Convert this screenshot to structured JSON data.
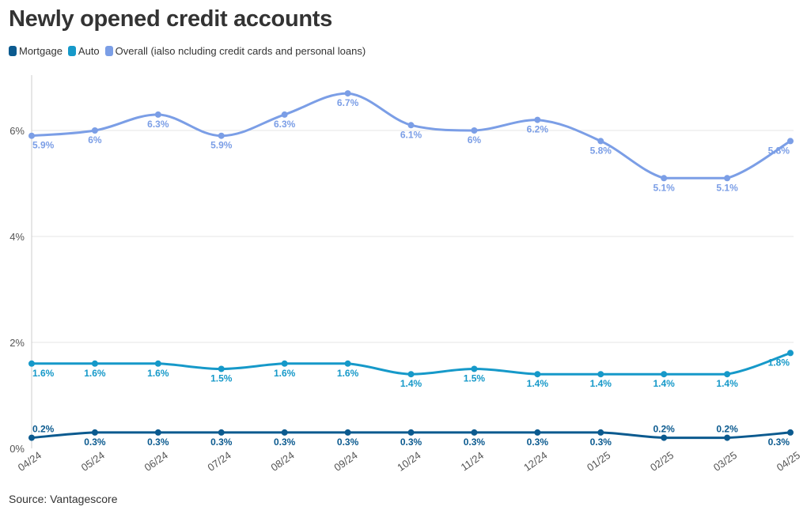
{
  "title": "Newly opened credit accounts",
  "source": "Source: Vantagescore",
  "legend": [
    {
      "name": "Mortgage",
      "color": "#0b5a8f"
    },
    {
      "name": "Auto",
      "color": "#1699c9"
    },
    {
      "name": "Overall (ialso ncluding credit cards and personal loans)",
      "color": "#7b9ee6"
    }
  ],
  "chart_data": {
    "type": "line",
    "title": "Newly opened credit accounts",
    "xlabel": "",
    "ylabel": "",
    "categories": [
      "04/24",
      "05/24",
      "06/24",
      "07/24",
      "08/24",
      "09/24",
      "10/24",
      "11/24",
      "12/24",
      "01/25",
      "02/25",
      "03/25",
      "04/25"
    ],
    "y_ticks": [
      "0%",
      "2%",
      "4%",
      "6%"
    ],
    "ylim": [
      0,
      7
    ],
    "grid": true,
    "legend_position": "top-left",
    "series": [
      {
        "name": "Mortgage",
        "color": "#0b5a8f",
        "values": [
          0.2,
          0.3,
          0.3,
          0.3,
          0.3,
          0.3,
          0.3,
          0.3,
          0.3,
          0.3,
          0.2,
          0.2,
          0.3
        ],
        "labels": [
          "0.2%",
          "0.3%",
          "0.3%",
          "0.3%",
          "0.3%",
          "0.3%",
          "0.3%",
          "0.3%",
          "0.3%",
          "0.3%",
          "0.2%",
          "0.2%",
          "0.3%"
        ]
      },
      {
        "name": "Auto",
        "color": "#1699c9",
        "values": [
          1.6,
          1.6,
          1.6,
          1.5,
          1.6,
          1.6,
          1.4,
          1.5,
          1.4,
          1.4,
          1.4,
          1.4,
          1.8
        ],
        "labels": [
          "1.6%",
          "1.6%",
          "1.6%",
          "1.5%",
          "1.6%",
          "1.6%",
          "1.4%",
          "1.5%",
          "1.4%",
          "1.4%",
          "1.4%",
          "1.4%",
          "1.8%"
        ]
      },
      {
        "name": "Overall (ialso ncluding credit cards and personal loans)",
        "color": "#7b9ee6",
        "values": [
          5.9,
          6.0,
          6.3,
          5.9,
          6.3,
          6.7,
          6.1,
          6.0,
          6.2,
          5.8,
          5.1,
          5.1,
          5.8
        ],
        "labels": [
          "5.9%",
          "6%",
          "6.3%",
          "5.9%",
          "6.3%",
          "6.7%",
          "6.1%",
          "6%",
          "6.2%",
          "5.8%",
          "5.1%",
          "5.1%",
          "5.8%"
        ]
      }
    ]
  }
}
